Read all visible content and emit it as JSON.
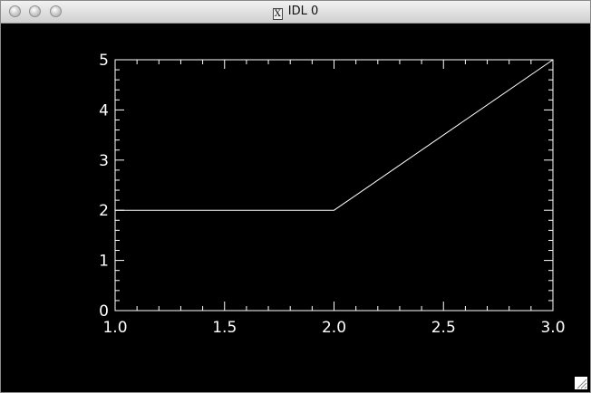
{
  "window": {
    "title": "IDL 0",
    "icon": "x11-icon"
  },
  "colors": {
    "background": "#000000",
    "foreground": "#ffffff"
  },
  "chart_data": {
    "type": "line",
    "x": [
      1.0,
      2.0,
      3.0
    ],
    "y": [
      2,
      2,
      5
    ],
    "xlim": [
      1.0,
      3.0
    ],
    "ylim": [
      0,
      5
    ],
    "x_major_ticks": [
      "1.0",
      "1.5",
      "2.0",
      "2.5",
      "3.0"
    ],
    "y_major_ticks": [
      "0",
      "1",
      "2",
      "3",
      "4",
      "5"
    ],
    "grid": false,
    "title": "",
    "xlabel": "",
    "ylabel": ""
  }
}
